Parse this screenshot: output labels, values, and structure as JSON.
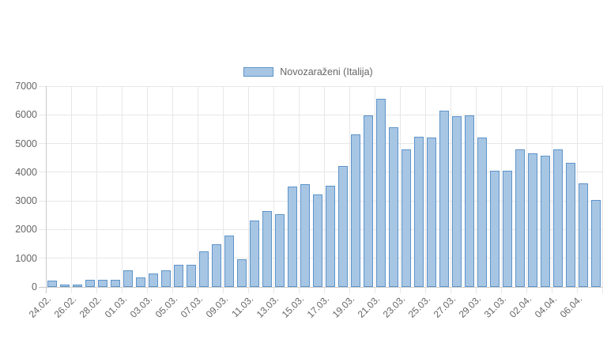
{
  "legend": {
    "label": "Novozaraženi (Italija)"
  },
  "chart_data": {
    "type": "bar",
    "title": "",
    "series_name": "Novozaraženi (Italija)",
    "legend_position": "top",
    "grid": true,
    "ylim": [
      0,
      7000
    ],
    "y_ticks": [
      0,
      1000,
      2000,
      3000,
      4000,
      5000,
      6000,
      7000
    ],
    "categories": [
      "24.02.",
      "25.02.",
      "26.02.",
      "27.02.",
      "28.02.",
      "29.02.",
      "01.03.",
      "02.03.",
      "03.03.",
      "04.03.",
      "05.03.",
      "06.03.",
      "07.03.",
      "08.03.",
      "09.03.",
      "10.03.",
      "11.03.",
      "12.03.",
      "13.03.",
      "14.03.",
      "15.03.",
      "16.03.",
      "17.03.",
      "18.03.",
      "19.03.",
      "20.03.",
      "21.03.",
      "22.03.",
      "23.03.",
      "24.03.",
      "25.03.",
      "26.03.",
      "27.03.",
      "28.03.",
      "29.03.",
      "30.03.",
      "31.03.",
      "01.04.",
      "02.04.",
      "03.04.",
      "04.04.",
      "05.04.",
      "06.04.",
      "07.04."
    ],
    "values": [
      221,
      93,
      78,
      250,
      238,
      240,
      566,
      342,
      466,
      587,
      769,
      778,
      1247,
      1492,
      1797,
      977,
      2313,
      2651,
      2547,
      3497,
      3590,
      3233,
      3526,
      4207,
      5322,
      5986,
      6557,
      5560,
      4789,
      5249,
      5210,
      6153,
      5959,
      5974,
      5217,
      4050,
      4053,
      4782,
      4668,
      4585,
      4805,
      4316,
      3599,
      3039
    ],
    "x_tick_labels": [
      "24.02.",
      "26.02.",
      "28.02.",
      "01.03.",
      "03.03.",
      "05.03.",
      "07.03.",
      "09.03.",
      "11.03.",
      "13.03.",
      "15.03.",
      "17.03.",
      "19.03.",
      "21.03.",
      "23.03.",
      "25.03.",
      "27.03.",
      "29.03.",
      "31.03.",
      "02.04.",
      "04.04.",
      "06.04."
    ],
    "colors": {
      "bar_fill": "#A7C6E4",
      "bar_border": "#5E94C9",
      "grid": "#E7E7E7",
      "axis": "#C9C9C9",
      "tick_text": "#666666"
    }
  }
}
